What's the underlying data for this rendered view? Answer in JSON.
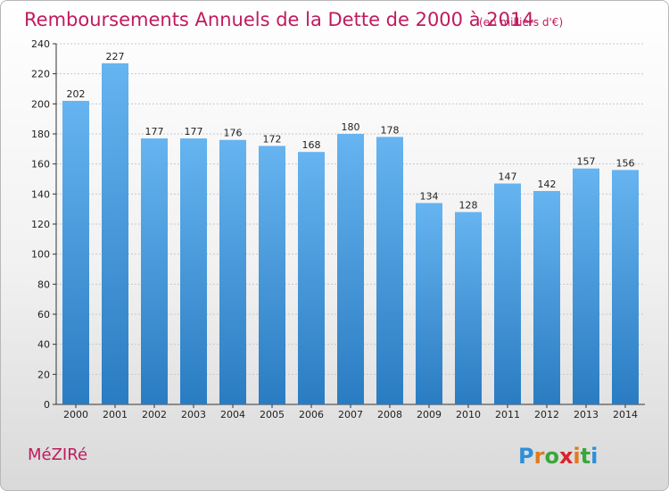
{
  "chart_data": {
    "type": "bar",
    "title": "Remboursements Annuels de la Dette de 2000 à 2014",
    "subtitle": "(en milliers d'€)",
    "categories": [
      "2000",
      "2001",
      "2002",
      "2003",
      "2004",
      "2005",
      "2006",
      "2007",
      "2008",
      "2009",
      "2010",
      "2011",
      "2012",
      "2013",
      "2014"
    ],
    "values": [
      202,
      227,
      177,
      177,
      176,
      172,
      168,
      180,
      178,
      134,
      128,
      147,
      142,
      157,
      156
    ],
    "ylim": [
      0,
      240
    ],
    "yticks": [
      0,
      20,
      40,
      60,
      80,
      100,
      120,
      140,
      160,
      180,
      200,
      220,
      240
    ],
    "grid": true,
    "xlabel": "",
    "ylabel": ""
  },
  "footer": {
    "commune": "MéZIRé",
    "logo": "Proxiti"
  },
  "colors": {
    "bar_light": "#63b1ee",
    "bar_dark": "#2c7fc4",
    "title": "#c01a5e"
  }
}
